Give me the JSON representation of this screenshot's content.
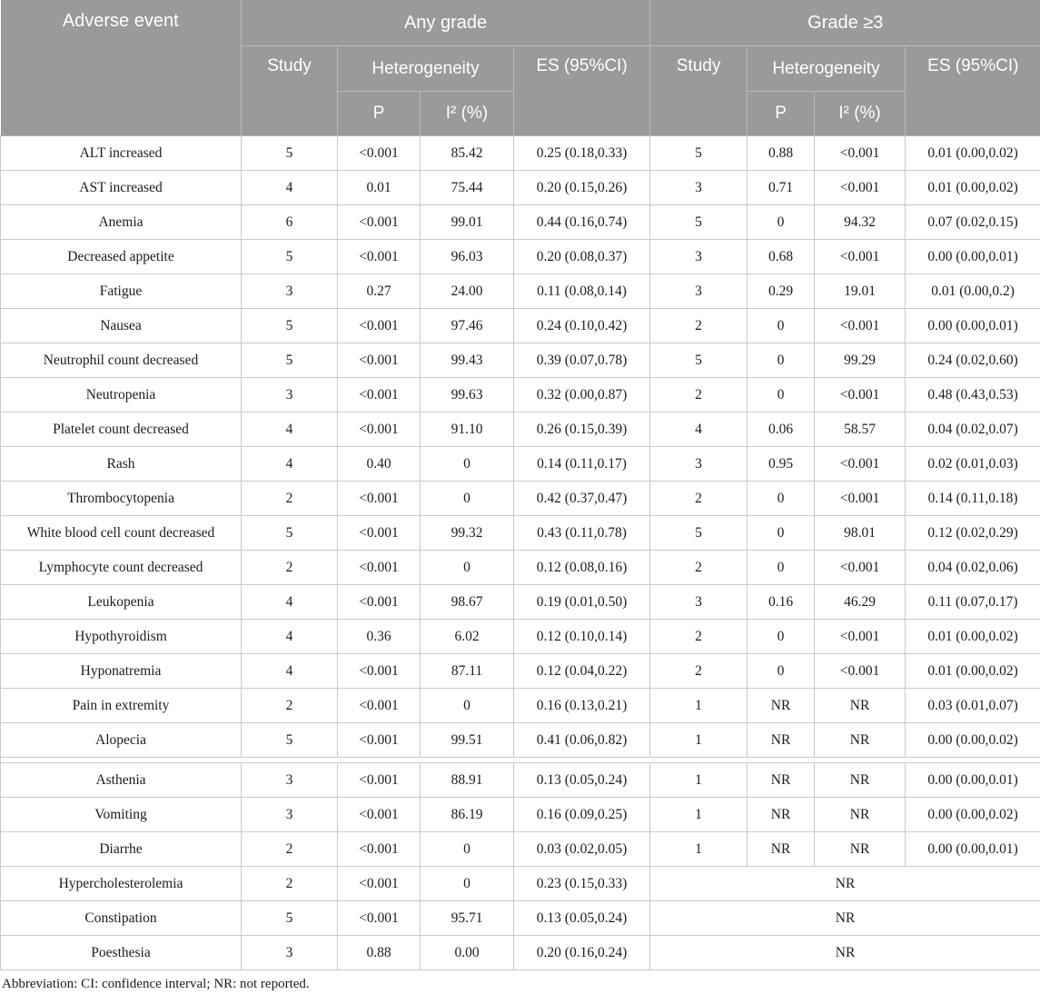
{
  "colors": {
    "header_bg": "#9a9a9a",
    "header_divider": "#b9b9b9",
    "header_text": "#ffffff",
    "body_border": "#c9c9c9",
    "body_text": "#1c1c1c"
  },
  "table": {
    "header": {
      "adverse_event": "Adverse event",
      "any_grade": "Any grade",
      "grade_ge3": "Grade ≥3",
      "study": "Study",
      "heterogeneity": "Heterogeneity",
      "es": "ES (95%CI)",
      "p": "P",
      "i2": "I² (%)"
    },
    "rows": [
      {
        "event": "ALT increased",
        "any": [
          "5",
          "<0.001",
          "85.42",
          "0.25 (0.18,0.33)"
        ],
        "g3": [
          "5",
          "0.88",
          "<0.001",
          "0.01 (0.00,0.02)"
        ]
      },
      {
        "event": "AST increased",
        "any": [
          "4",
          "0.01",
          "75.44",
          "0.20 (0.15,0.26)"
        ],
        "g3": [
          "3",
          "0.71",
          "<0.001",
          "0.01 (0.00,0.02)"
        ]
      },
      {
        "event": "Anemia",
        "any": [
          "6",
          "<0.001",
          "99.01",
          "0.44 (0.16,0.74)"
        ],
        "g3": [
          "5",
          "0",
          "94.32",
          "0.07 (0.02,0.15)"
        ]
      },
      {
        "event": "Decreased appetite",
        "any": [
          "5",
          "<0.001",
          "96.03",
          "0.20 (0.08,0.37)"
        ],
        "g3": [
          "3",
          "0.68",
          "<0.001",
          "0.00 (0.00,0.01)"
        ]
      },
      {
        "event": "Fatigue",
        "any": [
          "3",
          "0.27",
          "24.00",
          "0.11 (0.08,0.14)"
        ],
        "g3": [
          "3",
          "0.29",
          "19.01",
          "0.01 (0.00,0.2)"
        ]
      },
      {
        "event": "Nausea",
        "any": [
          "5",
          "<0.001",
          "97.46",
          "0.24 (0.10,0.42)"
        ],
        "g3": [
          "2",
          "0",
          "<0.001",
          "0.00 (0.00,0.01)"
        ]
      },
      {
        "event": "Neutrophil count decreased",
        "any": [
          "5",
          "<0.001",
          "99.43",
          "0.39 (0.07,0.78)"
        ],
        "g3": [
          "5",
          "0",
          "99.29",
          "0.24 (0.02,0.60)"
        ]
      },
      {
        "event": "Neutropenia",
        "any": [
          "3",
          "<0.001",
          "99.63",
          "0.32 (0.00,0.87)"
        ],
        "g3": [
          "2",
          "0",
          "<0.001",
          "0.48 (0.43,0.53)"
        ]
      },
      {
        "event": "Platelet count decreased",
        "any": [
          "4",
          "<0.001",
          "91.10",
          "0.26 (0.15,0.39)"
        ],
        "g3": [
          "4",
          "0.06",
          "58.57",
          "0.04 (0.02,0.07)"
        ]
      },
      {
        "event": "Rash",
        "any": [
          "4",
          "0.40",
          "0",
          "0.14 (0.11,0.17)"
        ],
        "g3": [
          "3",
          "0.95",
          "<0.001",
          "0.02 (0.01,0.03)"
        ]
      },
      {
        "event": "Thrombocytopenia",
        "any": [
          "2",
          "<0.001",
          "0",
          "0.42 (0.37,0.47)"
        ],
        "g3": [
          "2",
          "0",
          "<0.001",
          "0.14 (0.11,0.18)"
        ]
      },
      {
        "event": "White blood cell count decreased",
        "any": [
          "5",
          "<0.001",
          "99.32",
          "0.43 (0.11,0.78)"
        ],
        "g3": [
          "5",
          "0",
          "98.01",
          "0.12 (0.02,0.29)"
        ]
      },
      {
        "event": "Lymphocyte count decreased",
        "any": [
          "2",
          "<0.001",
          "0",
          "0.12 (0.08,0.16)"
        ],
        "g3": [
          "2",
          "0",
          "<0.001",
          "0.04 (0.02,0.06)"
        ]
      },
      {
        "event": "Leukopenia",
        "any": [
          "4",
          "<0.001",
          "98.67",
          "0.19 (0.01,0.50)"
        ],
        "g3": [
          "3",
          "0.16",
          "46.29",
          "0.11 (0.07,0.17)"
        ]
      },
      {
        "event": "Hypothyroidism",
        "any": [
          "4",
          "0.36",
          "6.02",
          "0.12 (0.10,0.14)"
        ],
        "g3": [
          "2",
          "0",
          "<0.001",
          "0.01 (0.00,0.02)"
        ]
      },
      {
        "event": "Hyponatremia",
        "any": [
          "4",
          "<0.001",
          "87.11",
          "0.12 (0.04,0.22)"
        ],
        "g3": [
          "2",
          "0",
          "<0.001",
          "0.01 (0.00,0.02)"
        ]
      },
      {
        "event": "Pain in extremity",
        "any": [
          "2",
          "<0.001",
          "0",
          "0.16 (0.13,0.21)"
        ],
        "g3": [
          "1",
          "NR",
          "NR",
          "0.03 (0.01,0.07)"
        ]
      },
      {
        "event": "Alopecia",
        "any": [
          "5",
          "<0.001",
          "99.51",
          "0.41 (0.06,0.82)"
        ],
        "g3": [
          "1",
          "NR",
          "NR",
          "0.00 (0.00,0.02)"
        ]
      },
      {
        "event": "Asthenia",
        "section_break_before": true,
        "any": [
          "3",
          "<0.001",
          "88.91",
          "0.13 (0.05,0.24)"
        ],
        "g3": [
          "1",
          "NR",
          "NR",
          "0.00 (0.00,0.01)"
        ]
      },
      {
        "event": "Vomiting",
        "any": [
          "3",
          "<0.001",
          "86.19",
          "0.16 (0.09,0.25)"
        ],
        "g3": [
          "1",
          "NR",
          "NR",
          "0.00 (0.00,0.02)"
        ]
      },
      {
        "event": "Diarrhe",
        "any": [
          "2",
          "<0.001",
          "0",
          "0.03 (0.02,0.05)"
        ],
        "g3": [
          "1",
          "NR",
          "NR",
          "0.00 (0.00,0.01)"
        ]
      },
      {
        "event": "Hypercholesterolemia",
        "any": [
          "2",
          "<0.001",
          "0",
          "0.23 (0.15,0.33)"
        ],
        "g3_merged": "NR"
      },
      {
        "event": "Constipation",
        "any": [
          "5",
          "<0.001",
          "95.71",
          "0.13 (0.05,0.24)"
        ],
        "g3_merged": "NR"
      },
      {
        "event": "Poesthesia",
        "any": [
          "3",
          "0.88",
          "0.00",
          "0.20 (0.16,0.24)"
        ],
        "g3_merged": "NR"
      }
    ]
  },
  "footnote": "Abbreviation: CI: confidence interval; NR: not reported."
}
